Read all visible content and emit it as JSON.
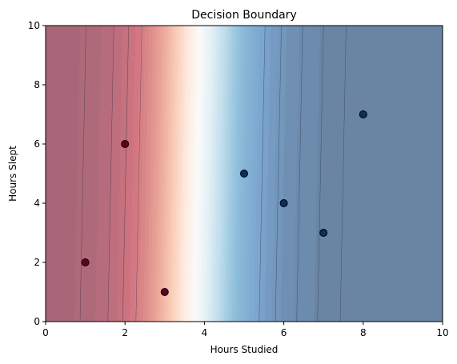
{
  "chart_data": {
    "type": "scatter",
    "title": "Decision Boundary",
    "xlabel": "Hours Studied",
    "ylabel": "Hours Slept",
    "xlim": [
      0,
      10
    ],
    "ylim": [
      0,
      10
    ],
    "xticks": [
      "0",
      "2",
      "4",
      "6",
      "8",
      "10"
    ],
    "yticks": [
      "0",
      "2",
      "4",
      "6",
      "8",
      "10"
    ],
    "grid": false,
    "background": {
      "kind": "filled-contour",
      "colormap": "RdBu",
      "boundary_x_at_y0": 3.75,
      "boundary_x_at_y10": 3.9,
      "contour_line_color": "#1a2a40"
    },
    "points": [
      {
        "x": 1,
        "y": 2,
        "class": 0
      },
      {
        "x": 2,
        "y": 6,
        "class": 0
      },
      {
        "x": 3,
        "y": 1,
        "class": 0
      },
      {
        "x": 5,
        "y": 5,
        "class": 1
      },
      {
        "x": 6,
        "y": 4,
        "class": 1
      },
      {
        "x": 7,
        "y": 3,
        "class": 1
      },
      {
        "x": 8,
        "y": 7,
        "class": 1
      }
    ],
    "class_colors": {
      "0": "#67001f",
      "1": "#053061"
    },
    "colors": {
      "red_dark": "#b2182b",
      "red_mid": "#d6604d",
      "red_light": "#f4a582",
      "white": "#ffffff",
      "blue_light": "#92c5de",
      "blue_mid": "#4393c3",
      "blue_dark": "#2166ac"
    }
  }
}
